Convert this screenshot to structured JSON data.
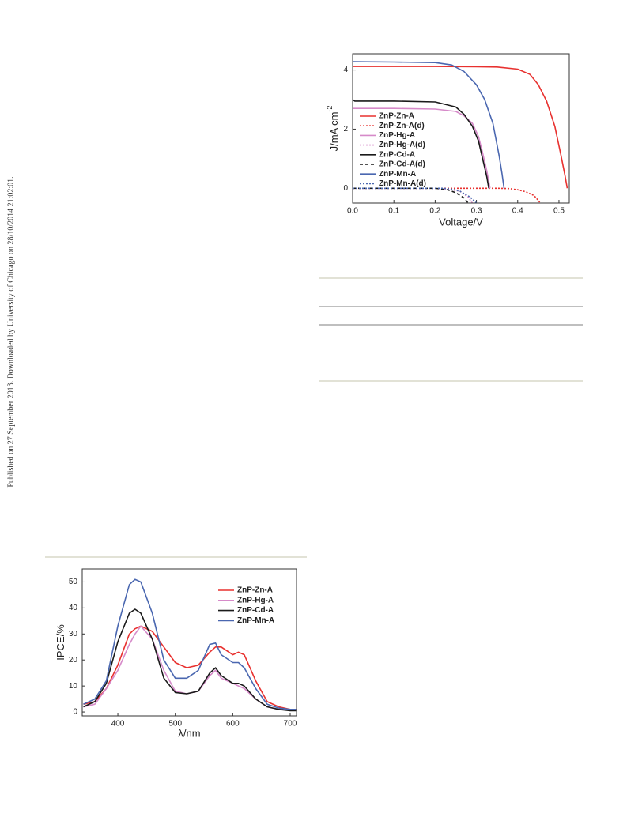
{
  "side_note": "Published on 27 September 2013. Downloaded by University of Chicago on 28/10/2014 21:02:01.",
  "chart_data": [
    {
      "type": "line",
      "xlabel": "Voltage/V",
      "ylabel": {
        "text": "J/mA cm",
        "superscript": "-2"
      },
      "xlim": [
        0,
        0.525
      ],
      "ylim": [
        -0.5,
        4.55
      ],
      "xticks": [
        {
          "value": 0,
          "label": "0.0"
        },
        0.1,
        0.2,
        0.3,
        0.4,
        0.5
      ],
      "yticks": [
        0,
        2,
        4
      ],
      "legend": "lower-left",
      "series": [
        {
          "name": "ZnP-Zn-A",
          "color": "#e8312f",
          "style": "solid",
          "x": [
            0,
            0.1,
            0.2,
            0.3,
            0.35,
            0.4,
            0.43,
            0.45,
            0.47,
            0.49,
            0.505,
            0.515,
            0.52
          ],
          "values": [
            4.12,
            4.12,
            4.12,
            4.11,
            4.1,
            4.03,
            3.85,
            3.5,
            2.95,
            2.1,
            1.1,
            0.4,
            0
          ]
        },
        {
          "name": "ZnP-Zn-A(d)",
          "color": "#e8312f",
          "style": "dotted",
          "x": [
            0,
            0.2,
            0.35,
            0.38,
            0.4,
            0.42,
            0.44,
            0.455
          ],
          "values": [
            0,
            0,
            0,
            -0.01,
            -0.05,
            -0.12,
            -0.25,
            -0.5
          ]
        },
        {
          "name": "ZnP-Hg-A",
          "color": "#d68ac9",
          "style": "solid",
          "x": [
            0,
            0.1,
            0.2,
            0.25,
            0.27,
            0.29,
            0.305,
            0.315,
            0.325,
            0.333
          ],
          "values": [
            2.7,
            2.7,
            2.68,
            2.6,
            2.45,
            2.2,
            1.75,
            1.2,
            0.6,
            0
          ]
        },
        {
          "name": "ZnP-Hg-A(d)",
          "color": "#d68ac9",
          "style": "dotted",
          "x": [
            0,
            0.2,
            0.23,
            0.26,
            0.28,
            0.29
          ],
          "values": [
            0,
            0,
            -0.03,
            -0.1,
            -0.3,
            -0.5
          ]
        },
        {
          "name": "ZnP-Cd-A",
          "color": "#1a1a1a",
          "style": "solid",
          "x": [
            0,
            0.005,
            0.1,
            0.2,
            0.25,
            0.27,
            0.29,
            0.305,
            0.315,
            0.325,
            0.33
          ],
          "values": [
            3.0,
            2.95,
            2.95,
            2.92,
            2.75,
            2.5,
            2.1,
            1.6,
            1.0,
            0.4,
            0
          ]
        },
        {
          "name": "ZnP-Cd-A(d)",
          "color": "#1a1a1a",
          "style": "dashed",
          "x": [
            0,
            0.2,
            0.23,
            0.25,
            0.27,
            0.28
          ],
          "values": [
            0,
            0,
            -0.05,
            -0.15,
            -0.33,
            -0.5
          ]
        },
        {
          "name": "ZnP-Mn-A",
          "color": "#4a67b0",
          "style": "solid",
          "x": [
            0,
            0.1,
            0.2,
            0.24,
            0.27,
            0.3,
            0.32,
            0.34,
            0.355,
            0.362,
            0.367
          ],
          "values": [
            4.28,
            4.27,
            4.25,
            4.17,
            3.95,
            3.5,
            3.0,
            2.2,
            1.1,
            0.5,
            0
          ]
        },
        {
          "name": "ZnP-Mn-A(d)",
          "color": "#4a67b0",
          "style": "dotted",
          "x": [
            0,
            0.22,
            0.24,
            0.26,
            0.285,
            0.3
          ],
          "values": [
            0,
            0,
            -0.03,
            -0.1,
            -0.3,
            -0.5
          ]
        }
      ]
    },
    {
      "type": "line",
      "xlabel": "λ/nm",
      "ylabel": {
        "text": "IPCE/%"
      },
      "xlim": [
        338,
        711
      ],
      "ylim": [
        -1.5,
        55
      ],
      "xticks": [
        400,
        500,
        600,
        700
      ],
      "yticks": [
        0,
        10,
        20,
        30,
        40,
        50
      ],
      "legend": "upper-right",
      "x": [
        340,
        360,
        380,
        400,
        420,
        430,
        440,
        460,
        480,
        500,
        520,
        540,
        560,
        570,
        580,
        600,
        610,
        620,
        640,
        660,
        680,
        700,
        710
      ],
      "series": [
        {
          "name": "ZnP-Zn-A",
          "color": "#e8312f",
          "style": "solid",
          "values": [
            3,
            4,
            9,
            18,
            30,
            32,
            33,
            31,
            25,
            19,
            17,
            18,
            23,
            25,
            25,
            22,
            23,
            22,
            12,
            4,
            2,
            1,
            1
          ]
        },
        {
          "name": "ZnP-Hg-A",
          "color": "#d68ac9",
          "style": "solid",
          "values": [
            2,
            3,
            9,
            16,
            26,
            30,
            33,
            28,
            16,
            8,
            7,
            8,
            14,
            16,
            13,
            11,
            10,
            9,
            5,
            2,
            1,
            1,
            1
          ]
        },
        {
          "name": "ZnP-Cd-A",
          "color": "#1a1a1a",
          "style": "solid",
          "values": [
            2,
            4,
            11,
            27,
            38,
            39.5,
            38,
            28,
            13,
            7.5,
            7,
            8,
            15,
            17,
            14,
            11,
            11,
            10,
            5,
            2,
            1,
            0.5,
            0.5
          ]
        },
        {
          "name": "ZnP-Mn-A",
          "color": "#4a67b0",
          "style": "solid",
          "values": [
            3,
            5,
            12,
            33,
            49,
            51,
            50,
            38,
            20,
            13,
            13,
            16,
            26,
            26.5,
            22,
            19,
            19,
            17,
            9,
            3,
            1.5,
            1,
            1
          ]
        }
      ]
    }
  ]
}
